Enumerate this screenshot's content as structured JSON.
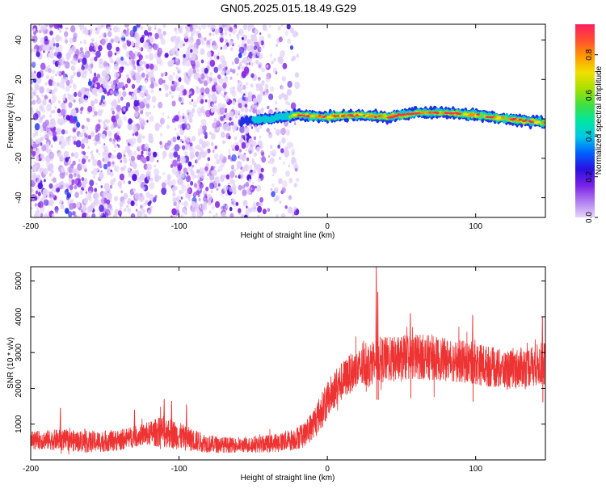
{
  "title": "GN05.2025.015.18.49.G29",
  "chart_data": [
    {
      "type": "heatmap",
      "title": "GN05.2025.015.18.49.G29",
      "xlabel": "Height of straight line (km)",
      "ylabel": "Frequency (Hz)",
      "xlim": [
        -200,
        147
      ],
      "ylim": [
        -50,
        48
      ],
      "xticks": [
        -200,
        -100,
        0,
        100
      ],
      "xtick_labels": [
        "-200",
        "-100",
        "0",
        "100"
      ],
      "yticks": [
        -40,
        -20,
        0,
        20,
        40
      ],
      "ytick_labels": [
        "-40",
        "-20",
        "0",
        "20",
        "40"
      ],
      "grid": false,
      "colorbar": {
        "label": "Normalized spectral amplitude",
        "range": [
          0,
          0.95
        ],
        "ticks": [
          0,
          0.2,
          0.4,
          0.6,
          0.8
        ],
        "tick_labels": [
          "0.0",
          "0.2",
          "0.4",
          "0.6",
          "0.8"
        ],
        "colors": [
          "#e6d6fb",
          "#b07cf0",
          "#7a1fe6",
          "#2a10e0",
          "#0060ff",
          "#00c8e6",
          "#00e6a0",
          "#40e040",
          "#a8e000",
          "#f0e000",
          "#ff9900",
          "#ff5030",
          "#ff2060"
        ]
      },
      "regions": [
        {
          "name": "noise",
          "x_range": [
            -200,
            -20
          ],
          "freq_range": [
            -50,
            48
          ],
          "amplitude_range": [
            0.0,
            0.3
          ]
        },
        {
          "name": "signal",
          "x_range": [
            -58,
            147
          ],
          "freq_center_trace": [
            [
              -58,
              -1
            ],
            [
              -40,
              0
            ],
            [
              -20,
              2
            ],
            [
              0,
              1
            ],
            [
              20,
              2
            ],
            [
              40,
              1
            ],
            [
              60,
              3
            ],
            [
              80,
              3
            ],
            [
              100,
              2
            ],
            [
              120,
              0
            ],
            [
              147,
              -2
            ]
          ],
          "peak_amplitude": 0.95
        }
      ]
    },
    {
      "type": "line",
      "xlabel": "Height of straight line (km)",
      "ylabel": "SNR (10 * v/v)",
      "xlim": [
        -200,
        147
      ],
      "ylim": [
        0,
        5400
      ],
      "xticks": [
        -200,
        -100,
        0,
        100
      ],
      "xtick_labels": [
        "-200",
        "-100",
        "0",
        "100"
      ],
      "yticks": [
        1000,
        2000,
        3000,
        4000,
        5000
      ],
      "ytick_labels": [
        "1000",
        "2000",
        "3000",
        "4000",
        "5000"
      ],
      "grid": false,
      "color": "#ee3333",
      "envelope": {
        "x": [
          -200,
          -180,
          -160,
          -140,
          -125,
          -110,
          -95,
          -80,
          -60,
          -40,
          -25,
          -15,
          -5,
          5,
          15,
          25,
          32,
          45,
          60,
          80,
          100,
          120,
          147
        ],
        "mean": [
          550,
          560,
          500,
          550,
          700,
          800,
          600,
          450,
          400,
          450,
          550,
          700,
          1300,
          2000,
          2400,
          2600,
          2800,
          2800,
          2900,
          2800,
          2700,
          2500,
          2700
        ],
        "spread": [
          250,
          300,
          300,
          300,
          300,
          450,
          350,
          250,
          200,
          250,
          300,
          350,
          500,
          550,
          550,
          600,
          650,
          650,
          650,
          600,
          600,
          550,
          600
        ]
      },
      "spikes": [
        [
          -180,
          1450
        ],
        [
          -130,
          1400
        ],
        [
          -110,
          1700
        ],
        [
          -105,
          1650
        ],
        [
          -95,
          1550
        ],
        [
          33,
          5400
        ],
        [
          34,
          4700
        ],
        [
          56,
          4100
        ],
        [
          98,
          4050
        ],
        [
          145,
          4000
        ]
      ]
    }
  ]
}
